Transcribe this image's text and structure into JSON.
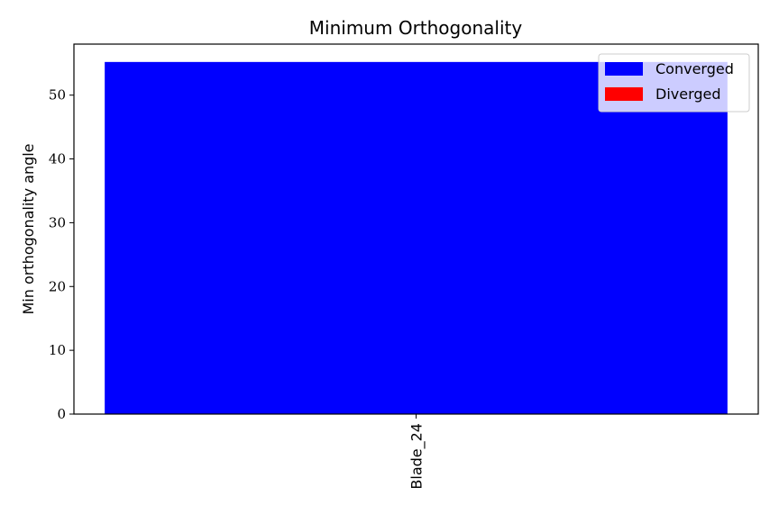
{
  "chart_data": {
    "type": "bar",
    "title": "Minimum Orthogonality",
    "xlabel": "",
    "ylabel": "Min orthogonality angle",
    "categories": [
      "Blade_24"
    ],
    "series": [
      {
        "name": "Converged",
        "color": "#0000ff",
        "values": [
          55.2
        ]
      },
      {
        "name": "Diverged",
        "color": "#ff0000",
        "values": [
          0
        ]
      }
    ],
    "ylim": [
      0,
      58
    ],
    "yticks": [
      0,
      10,
      20,
      30,
      40,
      50
    ],
    "grid": false,
    "legend_position": "top-right"
  }
}
